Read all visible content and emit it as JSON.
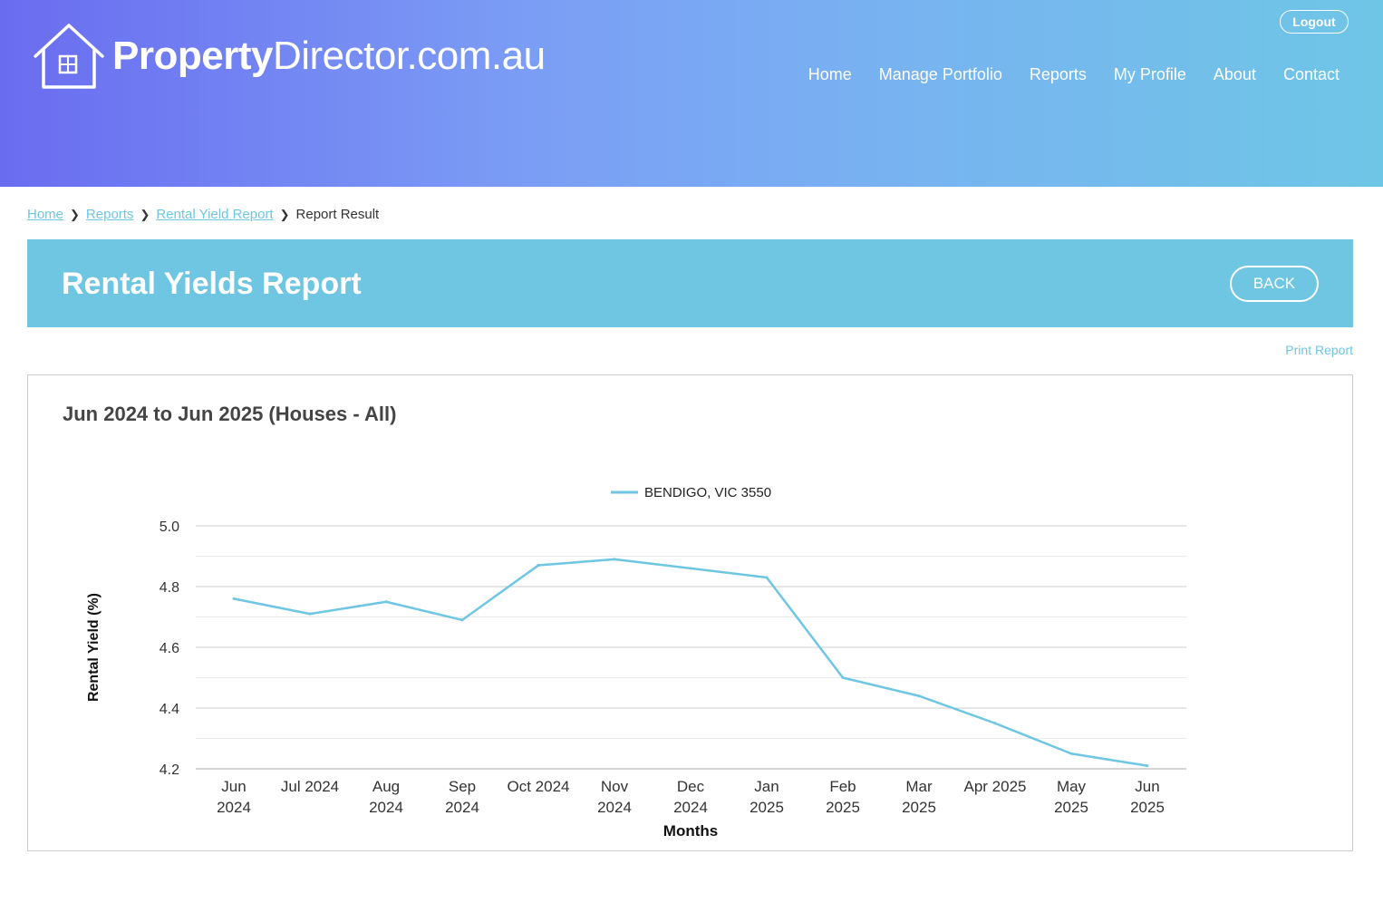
{
  "brand": {
    "name_bold": "Property",
    "name_rest": "Director.com.au"
  },
  "header": {
    "logout_label": "Logout",
    "nav": [
      "Home",
      "Manage Portfolio",
      "Reports",
      "My Profile",
      "About",
      "Contact"
    ]
  },
  "breadcrumb": {
    "items": [
      "Home",
      "Reports",
      "Rental Yield Report"
    ],
    "current": "Report Result"
  },
  "page": {
    "title": "Rental Yields Report",
    "back_label": "BACK",
    "print_label": "Print Report"
  },
  "chart_heading": "Jun 2024 to Jun 2025 (Houses - All)",
  "colors": {
    "accent": "#6ec6e2",
    "header_start": "#6a6cf0",
    "header_end": "#6ec6e6"
  },
  "chart_data": {
    "type": "line",
    "xlabel": "Months",
    "ylabel": "Rental Yield (%)",
    "ylim": [
      4.2,
      5.0
    ],
    "yticks": [
      "5.0",
      "4.8",
      "4.6",
      "4.4",
      "4.2"
    ],
    "grid": true,
    "legend_position": "top",
    "categories": [
      "Jun 2024",
      "Jul 2024",
      "Aug 2024",
      "Sep 2024",
      "Oct 2024",
      "Nov 2024",
      "Dec 2024",
      "Jan 2025",
      "Feb 2025",
      "Mar 2025",
      "Apr 2025",
      "May 2025",
      "Jun 2025"
    ],
    "category_labels": [
      [
        "Jun",
        "2024"
      ],
      [
        "Jul 2024"
      ],
      [
        "Aug",
        "2024"
      ],
      [
        "Sep",
        "2024"
      ],
      [
        "Oct 2024"
      ],
      [
        "Nov",
        "2024"
      ],
      [
        "Dec",
        "2024"
      ],
      [
        "Jan",
        "2025"
      ],
      [
        "Feb",
        "2025"
      ],
      [
        "Mar",
        "2025"
      ],
      [
        "Apr 2025"
      ],
      [
        "May",
        "2025"
      ],
      [
        "Jun",
        "2025"
      ]
    ],
    "series": [
      {
        "name": "BENDIGO, VIC 3550",
        "color": "#6ec6e2",
        "values": [
          4.76,
          4.71,
          4.75,
          4.69,
          4.87,
          4.89,
          4.86,
          4.83,
          4.5,
          4.44,
          4.35,
          4.25,
          4.21
        ]
      }
    ]
  }
}
